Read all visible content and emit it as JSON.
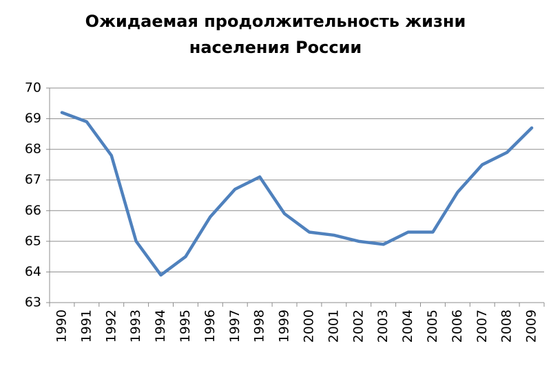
{
  "chart_data": {
    "type": "line",
    "title": "Ожидаемая продолжительность жизни населения России",
    "categories": [
      "1990",
      "1991",
      "1992",
      "1993",
      "1994",
      "1995",
      "1996",
      "1997",
      "1998",
      "1999",
      "2000",
      "2001",
      "2002",
      "2003",
      "2004",
      "2005",
      "2006",
      "2007",
      "2008",
      "2009"
    ],
    "values": [
      69.2,
      68.9,
      67.8,
      65.0,
      63.9,
      64.5,
      65.8,
      66.7,
      67.1,
      65.9,
      65.3,
      65.2,
      65.0,
      64.9,
      65.3,
      65.3,
      66.6,
      67.5,
      67.9,
      68.7
    ],
    "color": "#4f81bd",
    "ylim": [
      63,
      70
    ],
    "yticks": [
      63,
      64,
      65,
      66,
      67,
      68,
      69,
      70
    ],
    "grid": true
  }
}
